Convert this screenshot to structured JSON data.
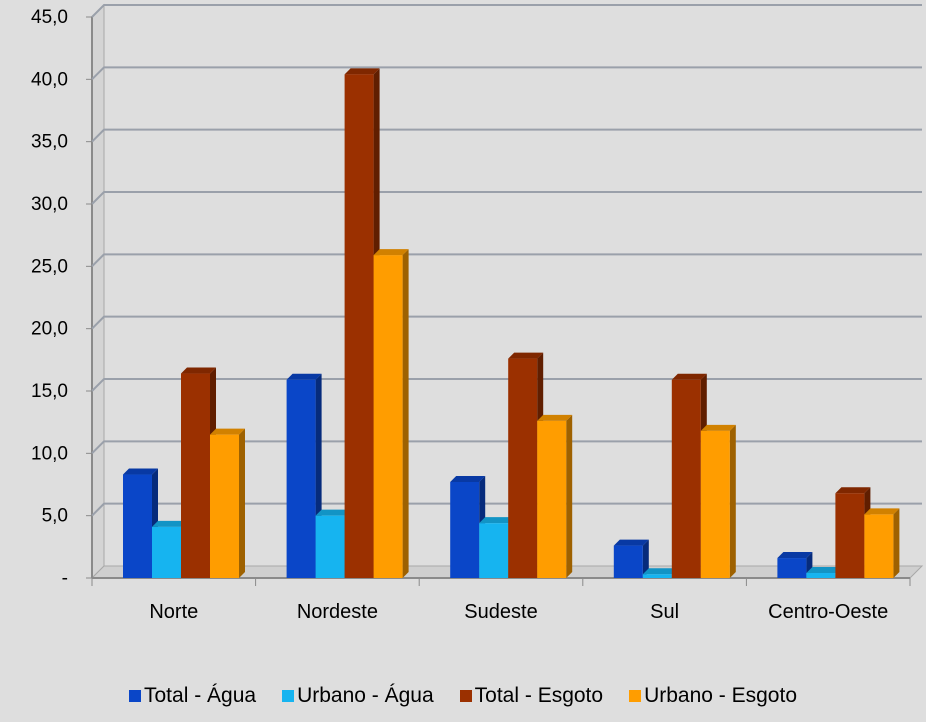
{
  "chart_data": {
    "type": "bar",
    "categories": [
      "Norte",
      "Nordeste",
      "Sudeste",
      "Sul",
      "Centro-Oeste"
    ],
    "series": [
      {
        "name": "Total - Água",
        "color": "#0a46c8",
        "values": [
          8.3,
          15.9,
          7.7,
          2.6,
          1.6
        ]
      },
      {
        "name": "Urbano - Água",
        "color": "#16b4f0",
        "values": [
          4.1,
          5.0,
          4.4,
          0.3,
          0.4
        ]
      },
      {
        "name": "Total - Esgoto",
        "color": "#9b3000",
        "values": [
          16.4,
          40.4,
          17.6,
          15.9,
          6.8
        ]
      },
      {
        "name": "Urbano - Esgoto",
        "color": "#ff9d00",
        "values": [
          11.5,
          25.9,
          12.6,
          11.8,
          5.1
        ]
      }
    ],
    "y_ticks": [
      "-",
      "5,0",
      "10,0",
      "15,0",
      "20,0",
      "25,0",
      "30,0",
      "35,0",
      "40,0",
      "45,0"
    ],
    "ylim": [
      0,
      45
    ],
    "grid": true,
    "legend_position": "bottom"
  }
}
